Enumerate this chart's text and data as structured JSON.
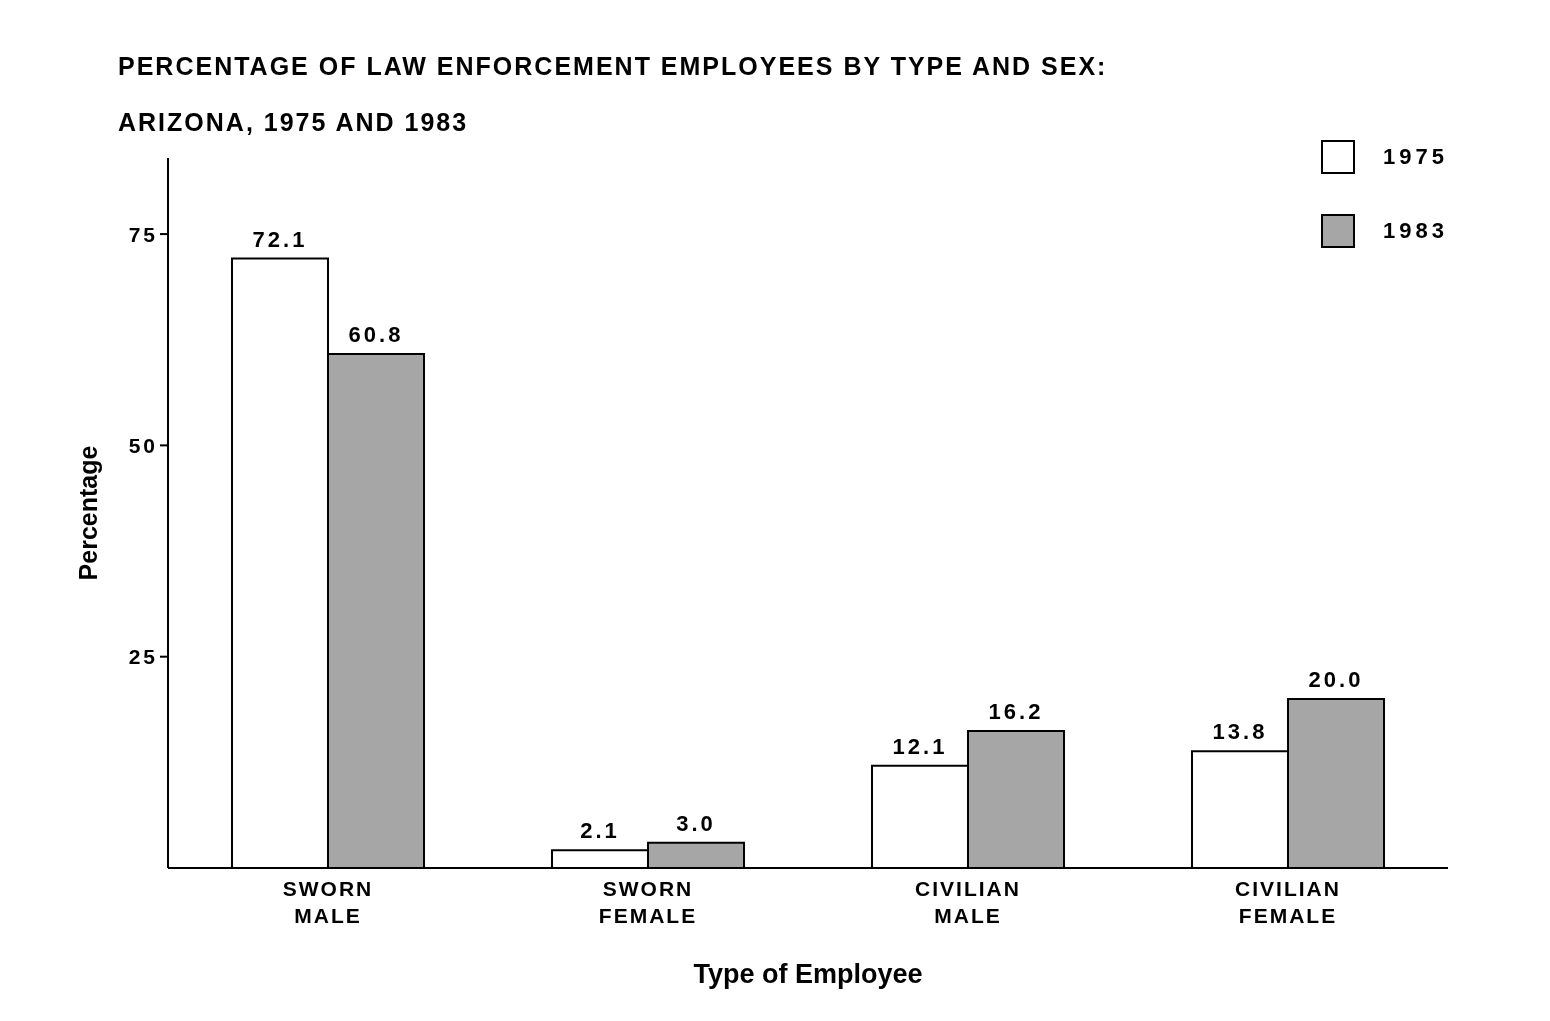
{
  "chart_data": {
    "type": "bar",
    "title": "PERCENTAGE OF LAW ENFORCEMENT EMPLOYEES BY TYPE AND SEX:",
    "subtitle": "ARIZONA, 1975 AND 1983",
    "xlabel": "Type of Employee",
    "ylabel": "Percentage",
    "categories": [
      "SWORN MALE",
      "SWORN FEMALE",
      "CIVILIAN MALE",
      "CIVILIAN FEMALE"
    ],
    "series": [
      {
        "name": "1975",
        "color": "#ffffff",
        "values": [
          72.1,
          2.1,
          12.1,
          13.8
        ],
        "value_labels": [
          "72.1",
          "2.1",
          "12.1",
          "13.8"
        ]
      },
      {
        "name": "1983",
        "color": "#a6a6a6",
        "values": [
          60.8,
          3.0,
          16.2,
          20.0
        ],
        "value_labels": [
          "60.8",
          "3.0",
          "16.2",
          "20.0"
        ]
      }
    ],
    "ylim": [
      0,
      84
    ],
    "yticks": [
      25,
      50,
      75
    ],
    "legend": "top right"
  }
}
